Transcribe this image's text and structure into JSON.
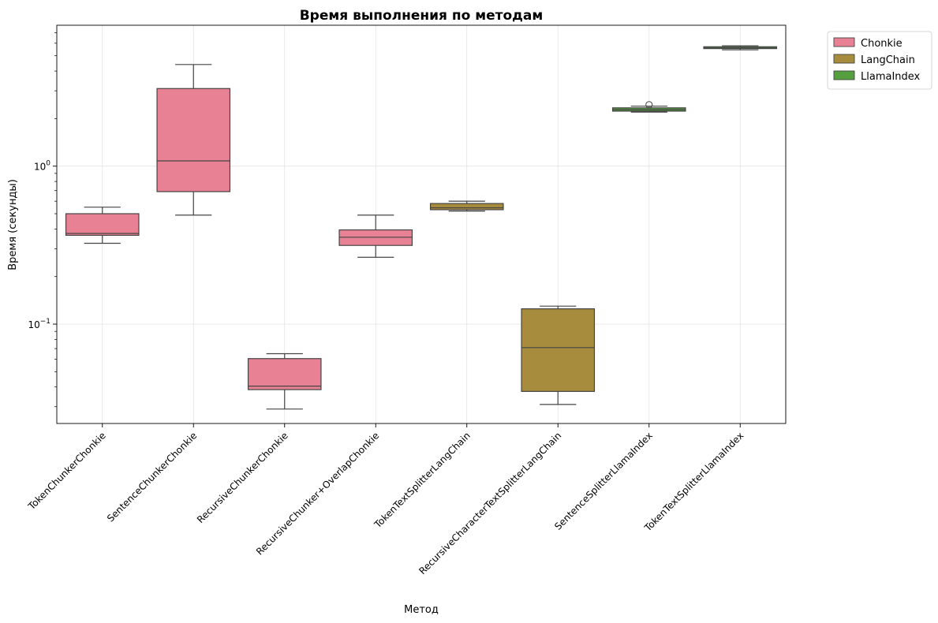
{
  "chart_data": {
    "type": "box",
    "title": "Время выполнения по методам",
    "xlabel": "Метод",
    "ylabel": "Время (секунды)",
    "yscale": "log",
    "ylim": [
      0.0235,
      7.8
    ],
    "yticks": [
      {
        "value": 0.1,
        "base": "10",
        "exp": "−1"
      },
      {
        "value": 1,
        "base": "10",
        "exp": "0"
      }
    ],
    "grid": true,
    "legend": {
      "position": "outside-top-right",
      "entries": [
        {
          "name": "Chonkie",
          "color": "#e88193"
        },
        {
          "name": "LangChain",
          "color": "#a88c3e"
        },
        {
          "name": "LlamaIndex",
          "color": "#569f3f"
        }
      ]
    },
    "categories": [
      "TokenChunkerChonkie",
      "SentenceChunkerChonkie",
      "RecursiveChunkerChonkie",
      "RecursiveChunker+OverlapChonkie",
      "TokenTextSplitterLangChain",
      "RecursiveCharacterTextSplitterLangChain",
      "SentenceSplitterLlamaIndex",
      "TokenTextSplitterLlamaIndex"
    ],
    "boxes": [
      {
        "category": "TokenChunkerChonkie",
        "library": "Chonkie",
        "whisker_low": 0.325,
        "q1": 0.365,
        "median": 0.375,
        "q3": 0.5,
        "whisker_high": 0.55,
        "outliers": []
      },
      {
        "category": "SentenceChunkerChonkie",
        "library": "Chonkie",
        "whisker_low": 0.49,
        "q1": 0.69,
        "median": 1.08,
        "q3": 3.1,
        "whisker_high": 4.4,
        "outliers": []
      },
      {
        "category": "RecursiveChunkerChonkie",
        "library": "Chonkie",
        "whisker_low": 0.029,
        "q1": 0.0385,
        "median": 0.0405,
        "q3": 0.0605,
        "whisker_high": 0.065,
        "outliers": []
      },
      {
        "category": "RecursiveChunker+OverlapChonkie",
        "library": "Chonkie",
        "whisker_low": 0.265,
        "q1": 0.315,
        "median": 0.355,
        "q3": 0.395,
        "whisker_high": 0.49,
        "outliers": []
      },
      {
        "category": "TokenTextSplitterLangChain",
        "library": "LangChain",
        "whisker_low": 0.52,
        "q1": 0.53,
        "median": 0.545,
        "q3": 0.58,
        "whisker_high": 0.6,
        "outliers": []
      },
      {
        "category": "RecursiveCharacterTextSplitterLangChain",
        "library": "LangChain",
        "whisker_low": 0.031,
        "q1": 0.0375,
        "median": 0.071,
        "q3": 0.125,
        "whisker_high": 0.13,
        "outliers": []
      },
      {
        "category": "SentenceSplitterLlamaIndex",
        "library": "LlamaIndex",
        "whisker_low": 2.2,
        "q1": 2.23,
        "median": 2.28,
        "q3": 2.34,
        "whisker_high": 2.4,
        "outliers": [
          2.45
        ]
      },
      {
        "category": "TokenTextSplitterLlamaIndex",
        "library": "LlamaIndex",
        "whisker_low": 5.45,
        "q1": 5.55,
        "median": 5.6,
        "q3": 5.7,
        "whisker_high": 5.78,
        "outliers": []
      }
    ]
  }
}
